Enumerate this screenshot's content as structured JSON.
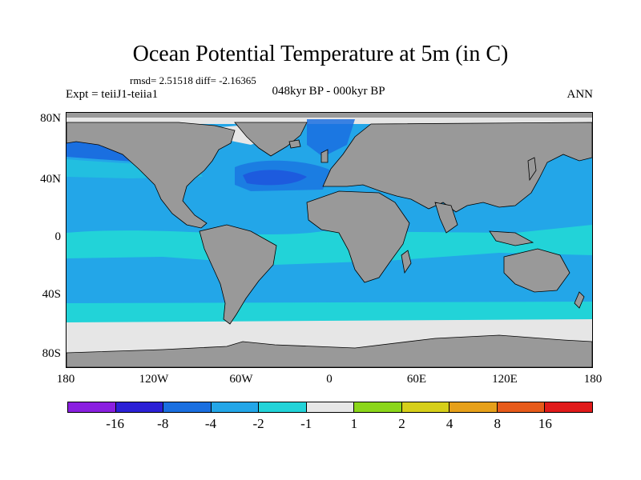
{
  "title": "Ocean Potential Temperature at 5m (in C)",
  "stats": "rmsd= 2.51518 diff= -2.16365",
  "experiment": "Expt = teiiJ1-teiia1",
  "period": "048kyr BP - 000kyr BP",
  "season": "ANN",
  "lat_labels": [
    "80N",
    "40N",
    "0",
    "40S",
    "80S"
  ],
  "lon_labels": [
    "180",
    "120W",
    "60W",
    "0",
    "60E",
    "120E",
    "180"
  ],
  "legend_labels": [
    "-16",
    "-8",
    "-4",
    "-2",
    "-1",
    "1",
    "2",
    "4",
    "8",
    "16"
  ],
  "legend_colors": [
    "#8a1fe0",
    "#2b20d6",
    "#1a6fe0",
    "#23a6e8",
    "#22d3d8",
    "#e6e6e6",
    "#8bd61a",
    "#d6cf1a",
    "#e6a01a",
    "#e65a1a",
    "#e01a1a"
  ],
  "colors": {
    "land": "#999999",
    "coast": "#000000",
    "ocean_main": "#23a6e8",
    "ocean_mid": "#1a6fe0",
    "ocean_light": "#22d3d8",
    "ice": "#e6e6e6",
    "deep": "#2b20d6"
  }
}
